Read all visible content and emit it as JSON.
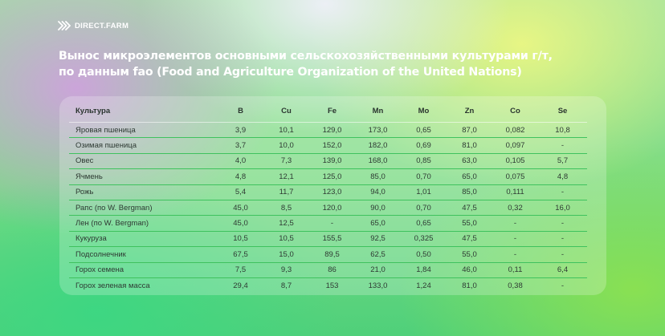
{
  "brand": {
    "logo_text": "DIRECT.FARM",
    "logo_icon": "chevrons-right-icon"
  },
  "title": {
    "line1": "Вынос микроэлементов основными сельскохозяйственными культурами г/т,",
    "line2": "по данным fao (Food and Agriculture Organization of the United Nations)"
  },
  "table": {
    "headers": [
      "Культура",
      "B",
      "Cu",
      "Fe",
      "Mn",
      "Mo",
      "Zn",
      "Co",
      "Se"
    ],
    "rows": [
      [
        "Яровая пшеница",
        "3,9",
        "10,1",
        "129,0",
        "173,0",
        "0,65",
        "87,0",
        "0,082",
        "10,8"
      ],
      [
        "Озимая пшеница",
        "3,7",
        "10,0",
        "152,0",
        "182,0",
        "0,69",
        "81,0",
        "0,097",
        "-"
      ],
      [
        "Овес",
        "4,0",
        "7,3",
        "139,0",
        "168,0",
        "0,85",
        "63,0",
        "0,105",
        "5,7"
      ],
      [
        "Ячмень",
        "4,8",
        "12,1",
        "125,0",
        "85,0",
        "0,70",
        "65,0",
        "0,075",
        "4,8"
      ],
      [
        "Рожь",
        "5,4",
        "11,7",
        "123,0",
        "94,0",
        "1,01",
        "85,0",
        "0,111",
        "-"
      ],
      [
        "Рапс (по W. Bergman)",
        "45,0",
        "8,5",
        "120,0",
        "90,0",
        "0,70",
        "47,5",
        "0,32",
        "16,0"
      ],
      [
        "Лен (по W. Bergman)",
        "45,0",
        "12,5",
        "-",
        "65,0",
        "0,65",
        "55,0",
        "-",
        "-"
      ],
      [
        "Кукуруза",
        "10,5",
        "10,5",
        "155,5",
        "92,5",
        "0,325",
        "47,5",
        "-",
        "-"
      ],
      [
        "Подсолнечник",
        "67,5",
        "15,0",
        "89,5",
        "62,5",
        "0,50",
        "55,0",
        "-",
        "-"
      ],
      [
        "Горох семена",
        "7,5",
        "9,3",
        "86",
        "21,0",
        "1,84",
        "46,0",
        "0,11",
        "6,4"
      ],
      [
        "Горох зеленая масса",
        "29,4",
        "8,7",
        "153",
        "133,0",
        "1,24",
        "81,0",
        "0,38",
        "-"
      ]
    ]
  },
  "colors": {
    "row_divider": "#3fc25e",
    "title_text": "#ffffff",
    "table_text": "#2e3a33"
  }
}
